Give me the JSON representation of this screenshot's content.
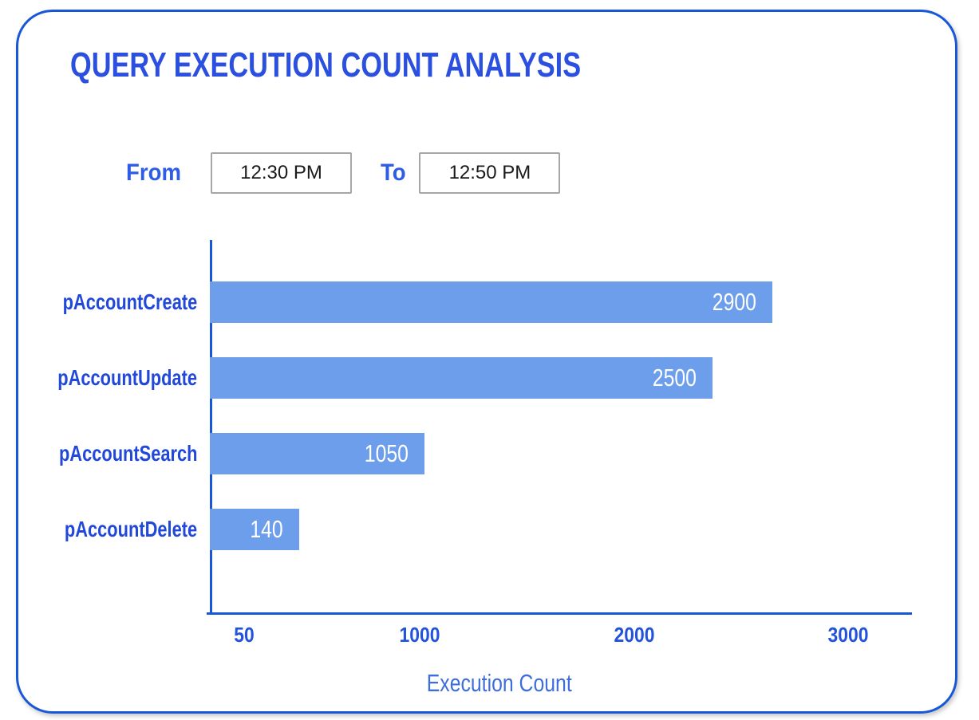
{
  "header": {
    "title": "QUERY EXECUTION COUNT ANALYSIS"
  },
  "time_filter": {
    "from_label": "From",
    "from_value": "12:30 PM",
    "to_label": "To",
    "to_value": "12:50 PM"
  },
  "chart_data": {
    "type": "bar",
    "orientation": "horizontal",
    "title": "QUERY EXECUTION COUNT ANALYSIS",
    "categories": [
      "pAccountCreate",
      "pAccountUpdate",
      "pAccountSearch",
      "pAccountDelete"
    ],
    "values": [
      2900,
      2500,
      1050,
      140
    ],
    "value_labels": [
      "2900",
      "2500",
      "1050",
      "140"
    ],
    "xlabel": "Execution Count",
    "x_ticks": [
      "50",
      "1000",
      "2000",
      "3000"
    ],
    "xlim": [
      0,
      3300
    ],
    "grid": false,
    "legend": "none",
    "layout_hints": {
      "bar_width_pct": [
        80.1,
        71.6,
        30.6,
        12.7
      ],
      "tick_pos_pct": [
        4.9,
        29.9,
        60.5,
        90.9
      ]
    }
  },
  "colors": {
    "accent": "#1757D8",
    "bar": "#6D9EEB",
    "bar_value_text": "#FFFFFF",
    "title_text": "#2B50DF",
    "category_text": "#2148D8",
    "filter_label_text": "#2E5CE6",
    "tick_text": "#2353DC",
    "xlabel_text": "#3E6EDC"
  }
}
